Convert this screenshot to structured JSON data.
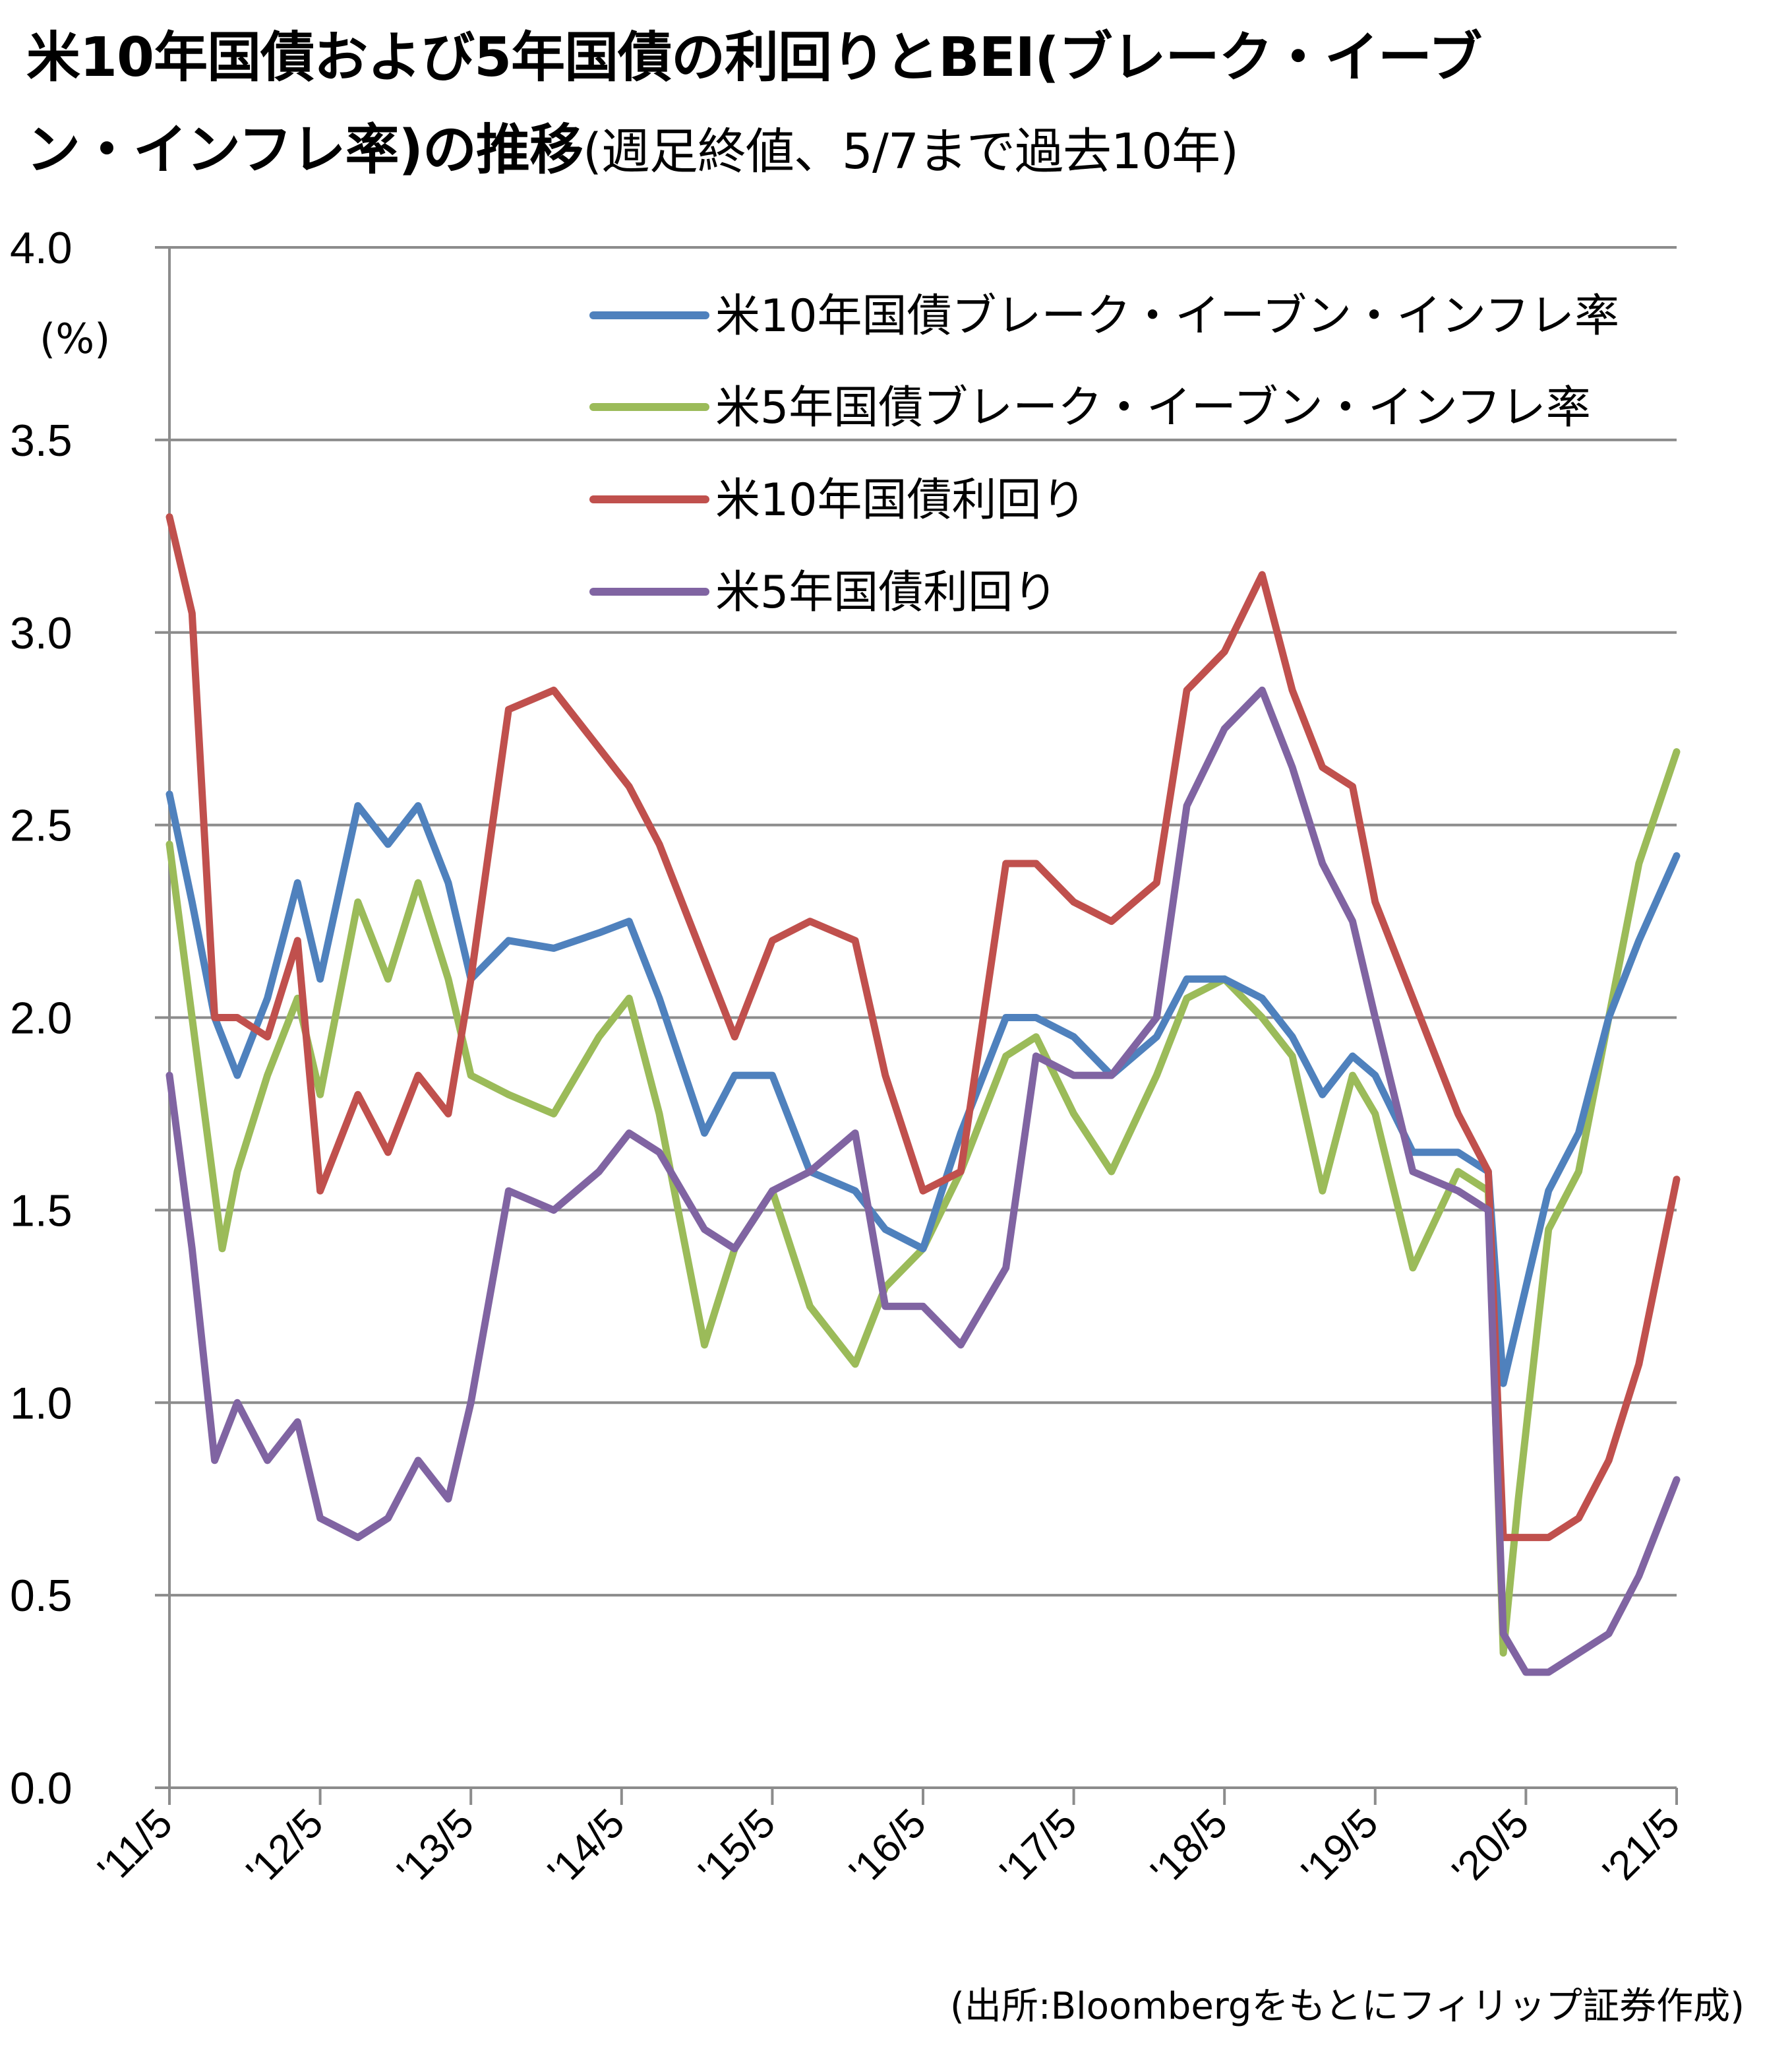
{
  "title": {
    "line1": "米10年国債および5年国債の利回りとBEI(ブレーク・イーブ",
    "line2_main": "ン・インフレ率)の推移",
    "line2_sub": "(週足終値、5/7まで過去10年)"
  },
  "source": "(出所:Bloombergをもとにフィリップ証券作成)",
  "unit_label": "(%)",
  "chart_data": {
    "type": "line",
    "x_unit": "year (fractional)",
    "xlim": [
      2011.35,
      2021.35
    ],
    "ylim": [
      0.0,
      4.0
    ],
    "y_ticks": [
      0.0,
      0.5,
      1.0,
      1.5,
      2.0,
      2.5,
      3.0,
      3.5,
      4.0
    ],
    "y_tick_labels": [
      "0.0",
      "0.5",
      "1.0",
      "1.5",
      "2.0",
      "2.5",
      "3.0",
      "3.5",
      "4.0"
    ],
    "x_ticks": [
      2011.35,
      2012.35,
      2013.35,
      2014.35,
      2015.35,
      2016.35,
      2017.35,
      2018.35,
      2019.35,
      2020.35,
      2021.35
    ],
    "x_tick_labels": [
      "'11/5",
      "'12/5",
      "'13/5",
      "'14/5",
      "'15/5",
      "'16/5",
      "'17/5",
      "'18/5",
      "'19/5",
      "'20/5",
      "'21/5"
    ],
    "grid": "horizontal",
    "legend_position": "top-right",
    "series": [
      {
        "name": "米10年国債ブレーク・イーブン・インフレ率",
        "color": "#4f81bd",
        "x": [
          2011.35,
          2011.5,
          2011.65,
          2011.8,
          2012.0,
          2012.2,
          2012.35,
          2012.6,
          2012.8,
          2013.0,
          2013.2,
          2013.35,
          2013.6,
          2013.9,
          2014.2,
          2014.4,
          2014.6,
          2014.9,
          2015.1,
          2015.35,
          2015.6,
          2015.9,
          2016.1,
          2016.35,
          2016.6,
          2016.9,
          2017.1,
          2017.35,
          2017.6,
          2017.9,
          2018.1,
          2018.35,
          2018.6,
          2018.8,
          2019.0,
          2019.2,
          2019.35,
          2019.6,
          2019.9,
          2020.1,
          2020.2,
          2020.35,
          2020.5,
          2020.7,
          2020.9,
          2021.1,
          2021.35
        ],
        "values": [
          2.58,
          2.3,
          2.0,
          1.85,
          2.05,
          2.35,
          2.1,
          2.55,
          2.45,
          2.55,
          2.35,
          2.1,
          2.2,
          2.18,
          2.22,
          2.25,
          2.05,
          1.7,
          1.85,
          1.85,
          1.6,
          1.55,
          1.45,
          1.4,
          1.7,
          2.0,
          2.0,
          1.95,
          1.85,
          1.95,
          2.1,
          2.1,
          2.05,
          1.95,
          1.8,
          1.9,
          1.85,
          1.65,
          1.65,
          1.6,
          1.05,
          1.3,
          1.55,
          1.7,
          2.0,
          2.2,
          2.42
        ]
      },
      {
        "name": "米5年国債ブレーク・イーブン・インフレ率",
        "color": "#9bbb59",
        "x": [
          2011.35,
          2011.5,
          2011.7,
          2011.8,
          2012.0,
          2012.2,
          2012.35,
          2012.6,
          2012.8,
          2013.0,
          2013.2,
          2013.35,
          2013.6,
          2013.9,
          2014.2,
          2014.4,
          2014.6,
          2014.9,
          2015.1,
          2015.35,
          2015.6,
          2015.9,
          2016.1,
          2016.35,
          2016.6,
          2016.9,
          2017.1,
          2017.35,
          2017.6,
          2017.9,
          2018.1,
          2018.35,
          2018.6,
          2018.8,
          2019.0,
          2019.2,
          2019.35,
          2019.6,
          2019.9,
          2020.1,
          2020.2,
          2020.3,
          2020.5,
          2020.7,
          2020.9,
          2021.1,
          2021.35
        ],
        "values": [
          2.45,
          2.0,
          1.4,
          1.6,
          1.85,
          2.05,
          1.8,
          2.3,
          2.1,
          2.35,
          2.1,
          1.85,
          1.8,
          1.75,
          1.95,
          2.05,
          1.75,
          1.15,
          1.4,
          1.55,
          1.25,
          1.1,
          1.3,
          1.4,
          1.6,
          1.9,
          1.95,
          1.75,
          1.6,
          1.85,
          2.05,
          2.1,
          2.0,
          1.9,
          1.55,
          1.85,
          1.75,
          1.35,
          1.6,
          1.55,
          0.35,
          0.75,
          1.45,
          1.6,
          2.0,
          2.4,
          2.69
        ]
      },
      {
        "name": "米10年国債利回り",
        "color": "#c0504d",
        "x": [
          2011.35,
          2011.5,
          2011.65,
          2011.8,
          2012.0,
          2012.2,
          2012.35,
          2012.6,
          2012.8,
          2013.0,
          2013.2,
          2013.35,
          2013.6,
          2013.9,
          2014.2,
          2014.4,
          2014.6,
          2014.9,
          2015.1,
          2015.35,
          2015.6,
          2015.9,
          2016.1,
          2016.35,
          2016.6,
          2016.9,
          2017.1,
          2017.35,
          2017.6,
          2017.9,
          2018.1,
          2018.35,
          2018.6,
          2018.8,
          2019.0,
          2019.2,
          2019.35,
          2019.6,
          2019.9,
          2020.1,
          2020.2,
          2020.35,
          2020.5,
          2020.7,
          2020.9,
          2021.1,
          2021.35
        ],
        "values": [
          3.3,
          3.05,
          2.0,
          2.0,
          1.95,
          2.2,
          1.55,
          1.8,
          1.65,
          1.85,
          1.75,
          2.1,
          2.8,
          2.85,
          2.7,
          2.6,
          2.45,
          2.15,
          1.95,
          2.2,
          2.25,
          2.2,
          1.85,
          1.55,
          1.6,
          2.4,
          2.4,
          2.3,
          2.25,
          2.35,
          2.85,
          2.95,
          3.15,
          2.85,
          2.65,
          2.6,
          2.3,
          2.05,
          1.75,
          1.6,
          0.65,
          0.65,
          0.65,
          0.7,
          0.85,
          1.1,
          1.58
        ]
      },
      {
        "name": "米5年国債利回り",
        "color": "#8064a2",
        "x": [
          2011.35,
          2011.5,
          2011.65,
          2011.8,
          2012.0,
          2012.2,
          2012.35,
          2012.6,
          2012.8,
          2013.0,
          2013.2,
          2013.35,
          2013.6,
          2013.9,
          2014.2,
          2014.4,
          2014.6,
          2014.9,
          2015.1,
          2015.35,
          2015.6,
          2015.9,
          2016.1,
          2016.35,
          2016.6,
          2016.9,
          2017.1,
          2017.35,
          2017.6,
          2017.9,
          2018.1,
          2018.35,
          2018.6,
          2018.8,
          2019.0,
          2019.2,
          2019.35,
          2019.6,
          2019.9,
          2020.1,
          2020.2,
          2020.35,
          2020.5,
          2020.7,
          2020.9,
          2021.1,
          2021.35
        ],
        "values": [
          1.85,
          1.4,
          0.85,
          1.0,
          0.85,
          0.95,
          0.7,
          0.65,
          0.7,
          0.85,
          0.75,
          1.0,
          1.55,
          1.5,
          1.6,
          1.7,
          1.65,
          1.45,
          1.4,
          1.55,
          1.6,
          1.7,
          1.25,
          1.25,
          1.15,
          1.35,
          1.9,
          1.85,
          1.85,
          2.0,
          2.55,
          2.75,
          2.85,
          2.65,
          2.4,
          2.25,
          2.0,
          1.6,
          1.55,
          1.5,
          0.4,
          0.3,
          0.3,
          0.35,
          0.4,
          0.55,
          0.8
        ]
      }
    ]
  }
}
